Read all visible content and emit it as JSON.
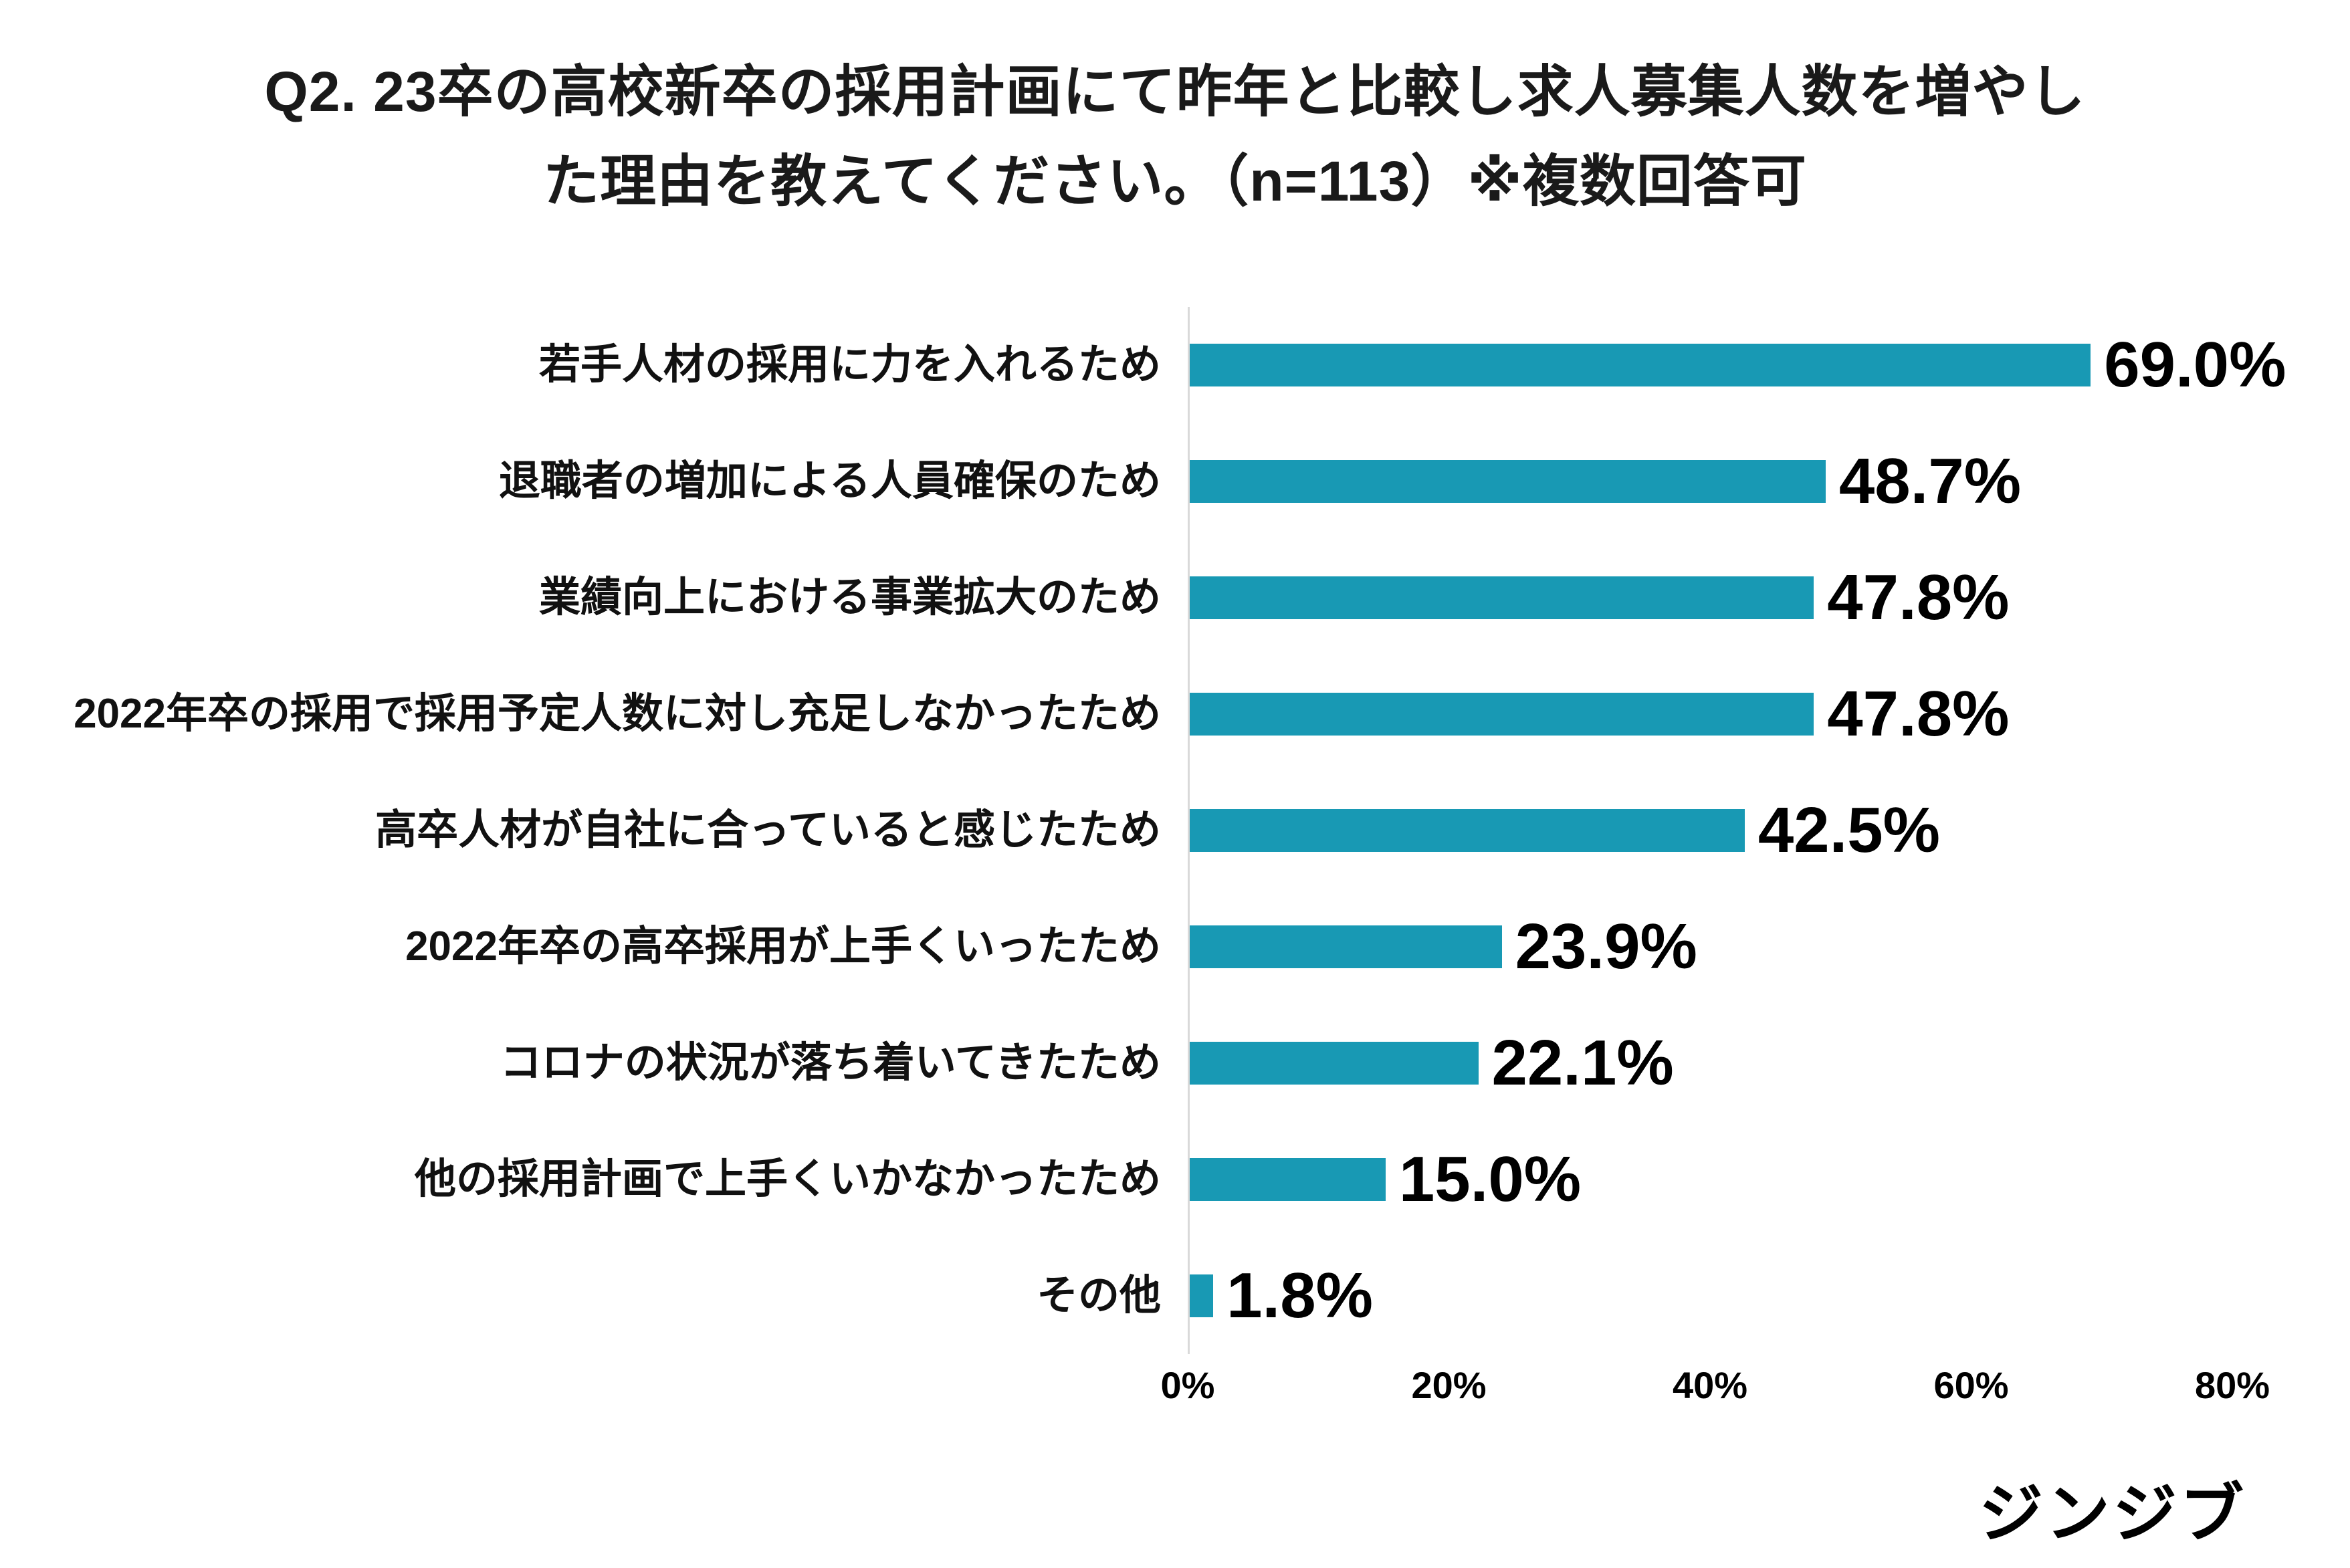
{
  "title": {
    "line1": "Q2. 23卒の高校新卒の採用計画にて昨年と比較し求人募集人数を増やし",
    "line2": "た理由を教えてください。（n=113）※複数回答可"
  },
  "logo": "ジンジブ",
  "colors": {
    "bar": "#1899B4",
    "axis_line": "#D9D9D9",
    "text": "#000000"
  },
  "chart_data": {
    "type": "bar",
    "orientation": "horizontal",
    "title": "Q2. 23卒の高校新卒の採用計画にて昨年と比較し求人募集人数を増やした理由を教えてください。（n=113）※複数回答可",
    "categories": [
      "若手人材の採用に力を入れるため",
      "退職者の増加による人員確保のため",
      "業績向上における事業拡大のため",
      "2022年卒の採用で採用予定人数に対し充足しなかったため",
      "高卒人材が自社に合っていると感じたため",
      "2022年卒の高卒採用が上手くいったため",
      "コロナの状況が落ち着いてきたため",
      "他の採用計画で上手くいかなかったため",
      "その他"
    ],
    "values": [
      69.0,
      48.7,
      47.8,
      47.8,
      42.5,
      23.9,
      22.1,
      15.0,
      1.8
    ],
    "value_labels": [
      "69.0%",
      "48.7%",
      "47.8%",
      "47.8%",
      "42.5%",
      "23.9%",
      "22.1%",
      "15.0%",
      "1.8%"
    ],
    "xlabel": "",
    "ylabel": "",
    "xlim": [
      0,
      80
    ],
    "x_tick_labels": [
      "0%",
      "20%",
      "40%",
      "60%",
      "80%"
    ],
    "x_tick_values": [
      0,
      20,
      40,
      60,
      80
    ],
    "grid": false,
    "legend": false,
    "bar_color": "#1899B4"
  }
}
